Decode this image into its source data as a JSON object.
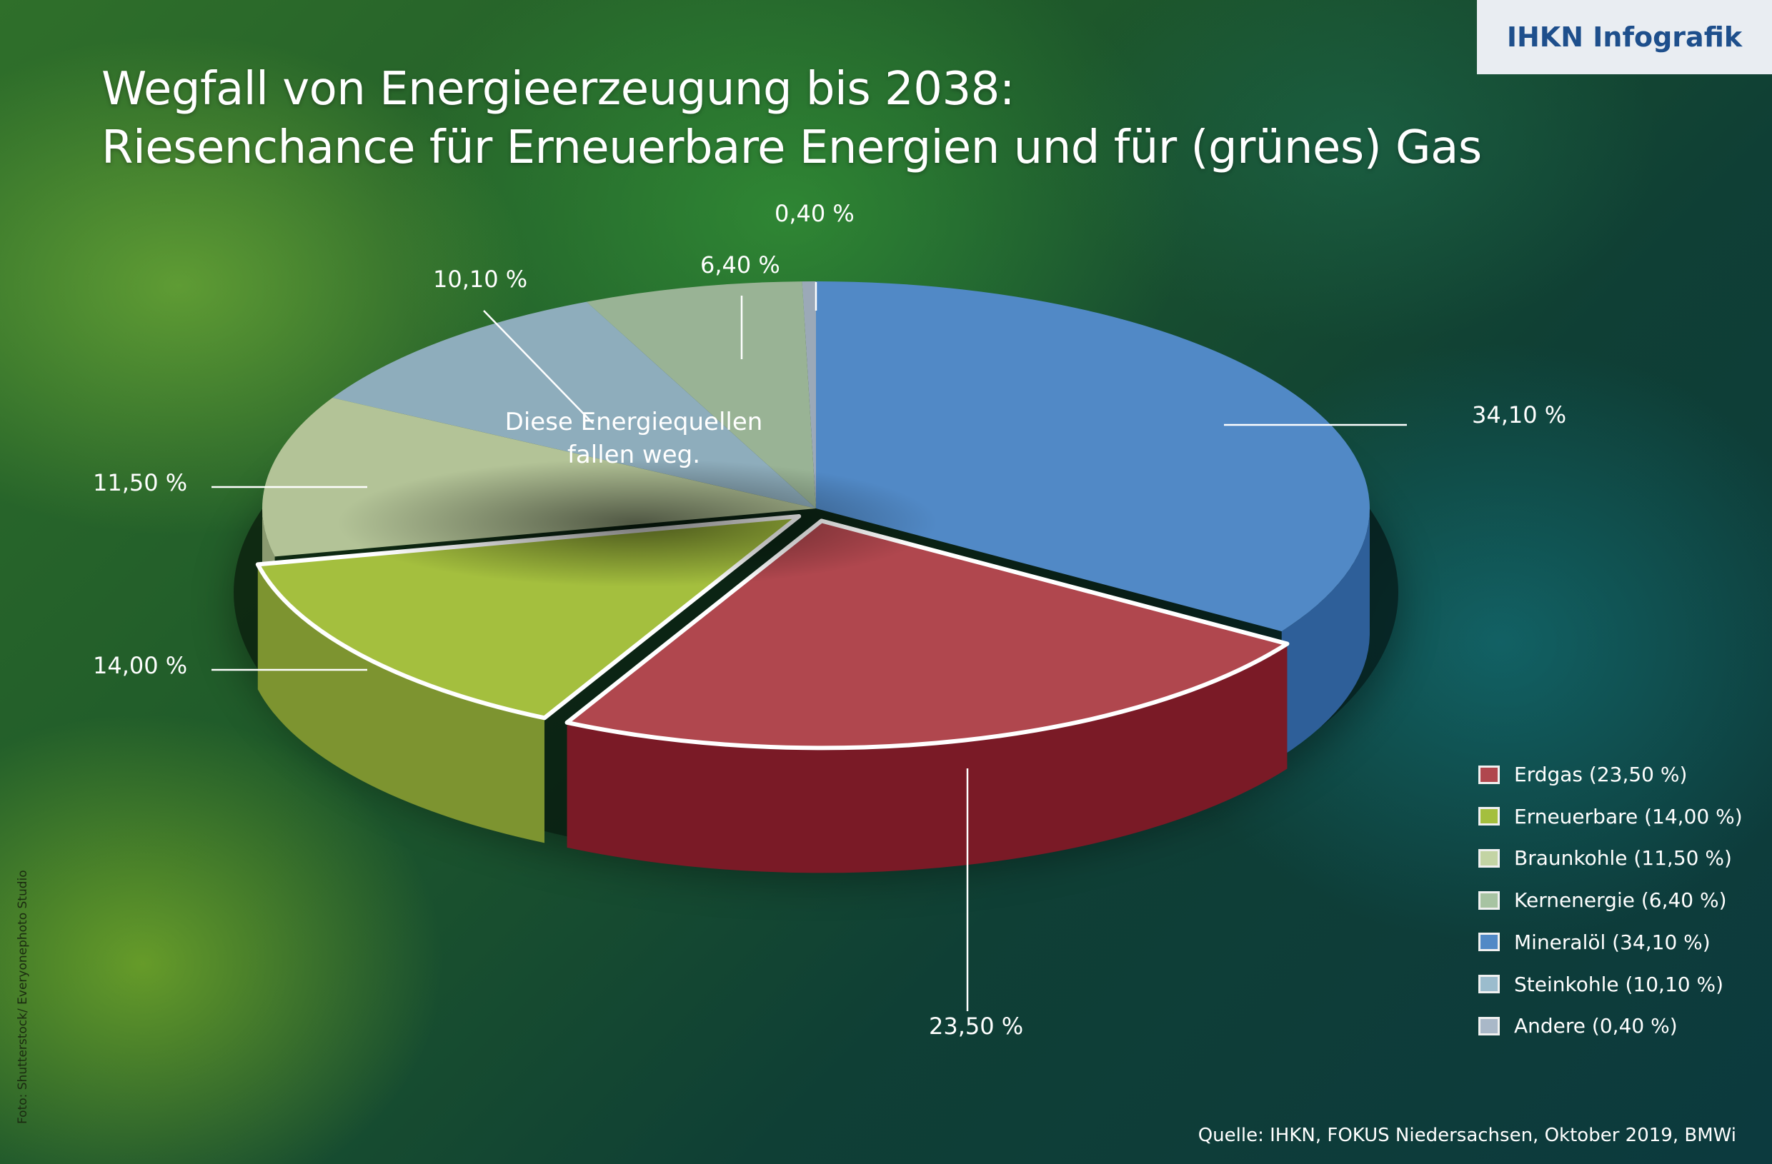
{
  "brand": "IHKN Infografik",
  "title_line1": "Wegfall von Energieerzeugung bis 2038:",
  "title_line2": "Riesenchance für Erneuerbare Energien und für (grünes) Gas",
  "note_line1": "Diese Energiequellen",
  "note_line2": "fallen weg.",
  "source": "Quelle: IHKN, FOKUS Niedersachsen, Oktober 2019, BMWi",
  "credit": "Foto: Shutterstock/ Everyonephoto Studio",
  "chart_data": {
    "type": "pie",
    "title": "Wegfall von Energieerzeugung bis 2038",
    "slices": [
      {
        "name": "Mineralöl",
        "value": 34.1,
        "label": "34,10 %",
        "legend": "Mineralöl (34,10 %)",
        "color": "#5189c6",
        "side": "#2e5f99",
        "highlight": true,
        "explode": false
      },
      {
        "name": "Erdgas",
        "value": 23.5,
        "label": "23,50 %",
        "legend": "Erdgas (23,50 %)",
        "color": "#b0474e",
        "side": "#7a1a26",
        "highlight": true,
        "explode": true
      },
      {
        "name": "Erneuerbare",
        "value": 14.0,
        "label": "14,00 %",
        "legend": "Erneuerbare (14,00 %)",
        "color": "#a4bf3e",
        "side": "#7d9430",
        "highlight": true,
        "explode": true
      },
      {
        "name": "Braunkohle",
        "value": 11.5,
        "label": "11,50 %",
        "legend": "Braunkohle (11,50 %)",
        "color": "#c3d4a4",
        "side": "#8a9a70",
        "highlight": false,
        "explode": false
      },
      {
        "name": "Steinkohle",
        "value": 10.1,
        "label": "10,10 %",
        "legend": "Steinkohle  (10,10 %)",
        "color": "#9bbccd",
        "side": "#6d8a99",
        "highlight": false,
        "explode": false
      },
      {
        "name": "Kernenergie",
        "value": 6.4,
        "label": "6,40 %",
        "legend": "Kernenergie  (6,40 %)",
        "color": "#a7c3a2",
        "side": "#76907a",
        "highlight": false,
        "explode": false
      },
      {
        "name": "Andere",
        "value": 0.4,
        "label": "0,40 %",
        "legend": "Andere (0,40 %)",
        "color": "#a9b8c8",
        "side": "#7a8898",
        "highlight": false,
        "explode": false
      }
    ],
    "legend_order": [
      "Erdgas",
      "Erneuerbare",
      "Braunkohle",
      "Kernenergie",
      "Mineralöl",
      "Steinkohle",
      "Andere"
    ],
    "legend_placement": "bottom-right"
  }
}
